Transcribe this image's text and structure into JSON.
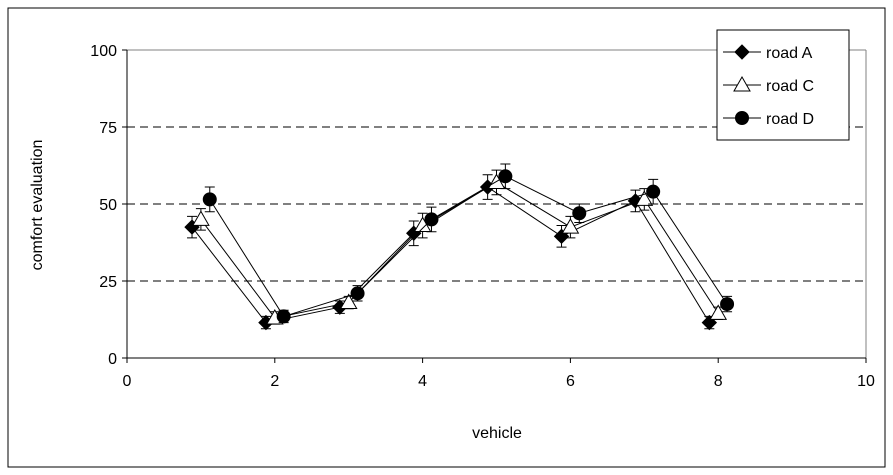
{
  "chart_data": {
    "type": "scatter",
    "xlabel": "vehicle",
    "ylabel": "comfort evaluation",
    "xlim": [
      0,
      10
    ],
    "ylim": [
      0,
      100
    ],
    "xticks": [
      0,
      2,
      4,
      6,
      8,
      10
    ],
    "yticks": [
      0,
      25,
      50,
      75,
      100
    ],
    "grid": "horizontal dashed",
    "legend": "top-right",
    "series": [
      {
        "name": "road A",
        "marker": "diamond",
        "x": [
          0.88,
          1.88,
          2.88,
          3.88,
          4.88,
          5.88,
          6.88,
          7.88
        ],
        "y": [
          42.5,
          11.5,
          16.5,
          40.5,
          55.5,
          39.5,
          51,
          11.5
        ],
        "err": [
          3.5,
          2,
          2,
          4,
          4,
          3.5,
          3.5,
          2
        ]
      },
      {
        "name": "road C",
        "marker": "triangle-open",
        "x": [
          1.0,
          2.0,
          3.0,
          4.0,
          5.0,
          6.0,
          7.0,
          8.0
        ],
        "y": [
          45,
          13,
          18,
          43,
          57,
          42.5,
          51.5,
          14.5
        ],
        "err": [
          3.5,
          2,
          2,
          4,
          4,
          3.5,
          3.5,
          2
        ]
      },
      {
        "name": "road D",
        "marker": "circle",
        "x": [
          1.12,
          2.12,
          3.12,
          4.12,
          5.12,
          6.12,
          7.12,
          8.12
        ],
        "y": [
          51.5,
          13.5,
          21,
          45,
          59,
          47,
          54,
          17.5
        ],
        "err": [
          4,
          2,
          2.5,
          4,
          4,
          3,
          4,
          2.5
        ]
      }
    ]
  }
}
